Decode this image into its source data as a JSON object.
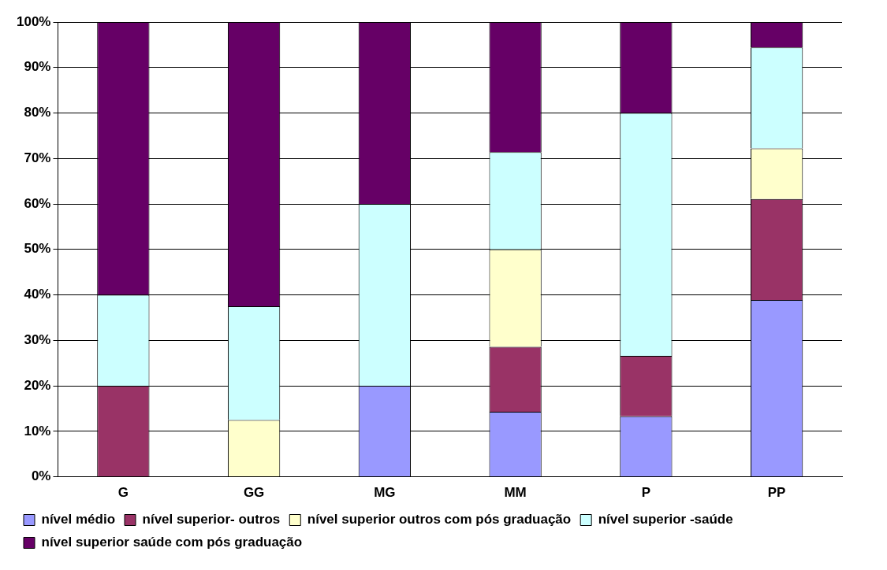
{
  "chart_data": {
    "type": "bar",
    "stacked": true,
    "categories": [
      "G",
      "GG",
      "MG",
      "MM",
      "P",
      "PP"
    ],
    "series": [
      {
        "name": "nível médio",
        "color": "#9999ff",
        "values": [
          0,
          0,
          20,
          14.3,
          13.3,
          38.9
        ]
      },
      {
        "name": "nível superior- outros",
        "color": "#993366",
        "values": [
          20,
          0,
          0,
          14.3,
          13.3,
          22.2
        ]
      },
      {
        "name": "nível superior outros com pós graduação",
        "color": "#ffffcc",
        "values": [
          0,
          12.5,
          0,
          21.4,
          0,
          11.1
        ]
      },
      {
        "name": "nível superior -saúde",
        "color": "#ccffff",
        "values": [
          20,
          25,
          40,
          21.4,
          53.4,
          22.2
        ]
      },
      {
        "name": "nível superior saúde com pós graduação",
        "color": "#660066",
        "values": [
          60,
          62.5,
          40,
          28.6,
          20,
          5.6
        ]
      }
    ],
    "ylim": [
      0,
      100
    ],
    "yticks": [
      {
        "value": 0,
        "label": "0%"
      },
      {
        "value": 10,
        "label": "10%"
      },
      {
        "value": 20,
        "label": "20%"
      },
      {
        "value": 30,
        "label": "30%"
      },
      {
        "value": 40,
        "label": "40%"
      },
      {
        "value": 50,
        "label": "50%"
      },
      {
        "value": 60,
        "label": "60%"
      },
      {
        "value": 70,
        "label": "70%"
      },
      {
        "value": 80,
        "label": "80%"
      },
      {
        "value": 90,
        "label": "90%"
      },
      {
        "value": 100,
        "label": "100%"
      }
    ],
    "grid": "y",
    "legend": "bottom"
  }
}
